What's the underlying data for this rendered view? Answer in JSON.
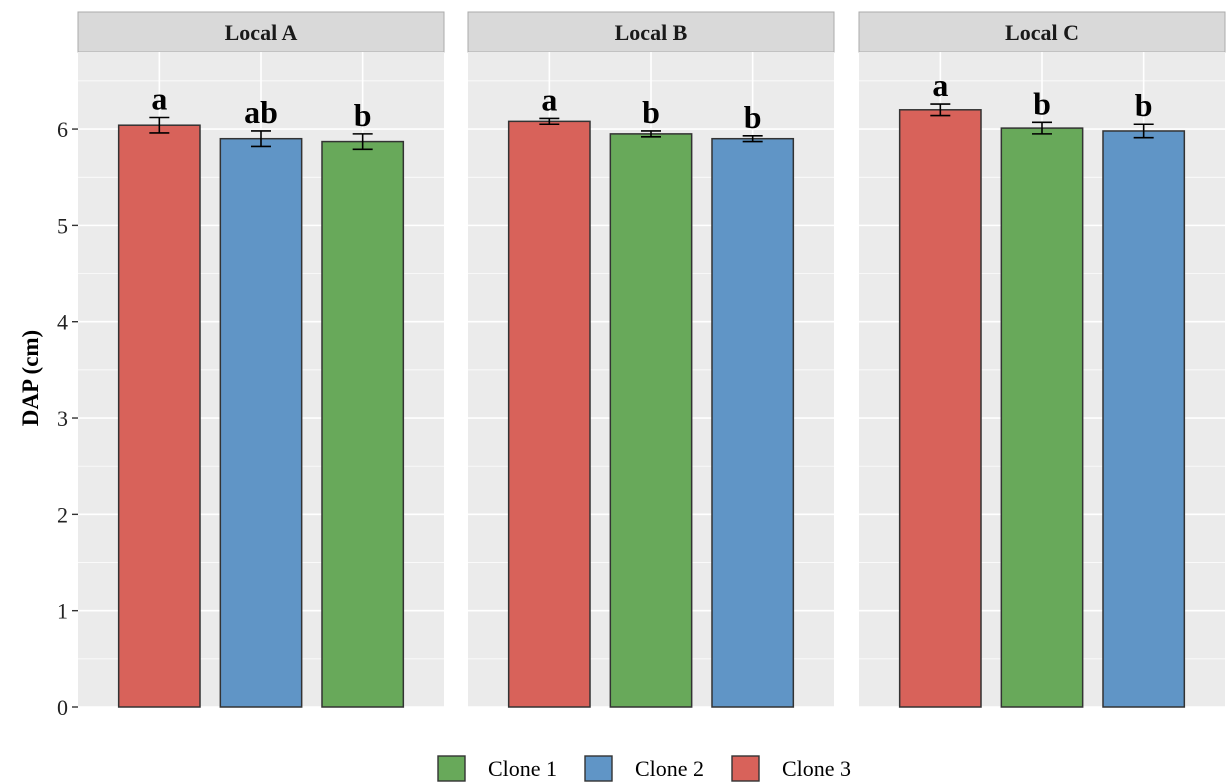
{
  "chart_data": {
    "type": "bar",
    "ylabel": "DAP (cm)",
    "xlabel": "",
    "ylim": [
      0,
      6.8
    ],
    "yticks": [
      0,
      1,
      2,
      3,
      4,
      5,
      6
    ],
    "grid": true,
    "legend_position": "bottom",
    "legend": [
      {
        "name": "Clone 1",
        "color": "#68a95a"
      },
      {
        "name": "Clone 2",
        "color": "#6095c6"
      },
      {
        "name": "Clone 3",
        "color": "#d8625a"
      }
    ],
    "panels": [
      {
        "title": "Local A",
        "bars": [
          {
            "clone": "Clone 3",
            "value": 6.04,
            "error": 0.08,
            "label": "a"
          },
          {
            "clone": "Clone 2",
            "value": 5.9,
            "error": 0.08,
            "label": "ab"
          },
          {
            "clone": "Clone 1",
            "value": 5.87,
            "error": 0.08,
            "label": "b"
          }
        ]
      },
      {
        "title": "Local B",
        "bars": [
          {
            "clone": "Clone 3",
            "value": 6.08,
            "error": 0.03,
            "label": "a"
          },
          {
            "clone": "Clone 1",
            "value": 5.95,
            "error": 0.03,
            "label": "b"
          },
          {
            "clone": "Clone 2",
            "value": 5.9,
            "error": 0.03,
            "label": "b"
          }
        ]
      },
      {
        "title": "Local C",
        "bars": [
          {
            "clone": "Clone 3",
            "value": 6.2,
            "error": 0.06,
            "label": "a"
          },
          {
            "clone": "Clone 1",
            "value": 6.01,
            "error": 0.06,
            "label": "b"
          },
          {
            "clone": "Clone 2",
            "value": 5.98,
            "error": 0.07,
            "label": "b"
          }
        ]
      }
    ]
  }
}
